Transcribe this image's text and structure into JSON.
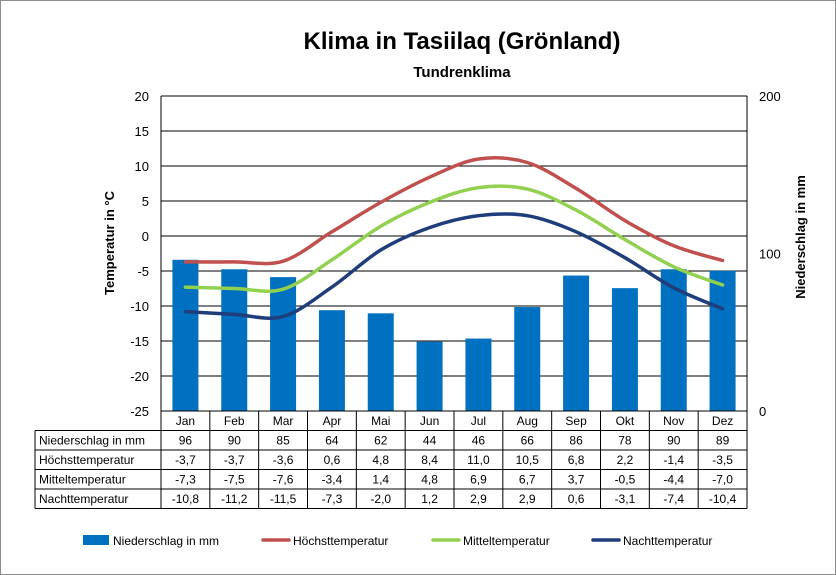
{
  "chart_data": {
    "type": "bar",
    "title": "Klima in Tasiilaq (Grönland)",
    "subtitle": "Tundrenklima",
    "categories": [
      "Jan",
      "Feb",
      "Mar",
      "Apr",
      "Mai",
      "Jun",
      "Jul",
      "Aug",
      "Sep",
      "Okt",
      "Nov",
      "Dez"
    ],
    "y_left": {
      "label": "Temperatur in °C",
      "min": -25,
      "max": 20,
      "ticks": [
        -25,
        -20,
        -15,
        -10,
        -5,
        0,
        5,
        10,
        15,
        20
      ]
    },
    "y_right": {
      "label": "Niederschlag in mm",
      "min": 0,
      "max": 200,
      "ticks": [
        0,
        100,
        200
      ]
    },
    "series": [
      {
        "name": "Niederschlag in mm",
        "kind": "bar",
        "axis": "right",
        "color": "#0070c0",
        "values": [
          96,
          90,
          85,
          64,
          62,
          44,
          46,
          66,
          86,
          78,
          90,
          89
        ],
        "labels": [
          "96",
          "90",
          "85",
          "64",
          "62",
          "44",
          "46",
          "66",
          "86",
          "78",
          "90",
          "89"
        ]
      },
      {
        "name": "Höchsttemperatur",
        "kind": "line",
        "axis": "left",
        "color": "#c0504d",
        "values": [
          -3.7,
          -3.7,
          -3.6,
          0.6,
          4.8,
          8.4,
          11.0,
          10.5,
          6.8,
          2.2,
          -1.4,
          -3.5
        ],
        "labels": [
          "-3,7",
          "-3,7",
          "-3,6",
          "0,6",
          "4,8",
          "8,4",
          "11,0",
          "10,5",
          "6,8",
          "2,2",
          "-1,4",
          "-3,5"
        ]
      },
      {
        "name": "Mitteltemperatur",
        "kind": "line",
        "axis": "left",
        "color": "#92d050",
        "values": [
          -7.3,
          -7.5,
          -7.6,
          -3.4,
          1.4,
          4.8,
          6.9,
          6.7,
          3.7,
          -0.5,
          -4.4,
          -7.0
        ],
        "labels": [
          "-7,3",
          "-7,5",
          "-7,6",
          "-3,4",
          "1,4",
          "4,8",
          "6,9",
          "6,7",
          "3,7",
          "-0,5",
          "-4,4",
          "-7,0"
        ]
      },
      {
        "name": "Nachttemperatur",
        "kind": "line",
        "axis": "left",
        "color": "#1f3d7a",
        "values": [
          -10.8,
          -11.2,
          -11.5,
          -7.3,
          -2.0,
          1.2,
          2.9,
          2.9,
          0.6,
          -3.1,
          -7.4,
          -10.4
        ],
        "labels": [
          "-10,8",
          "-11,2",
          "-11,5",
          "-7,3",
          "-2,0",
          "1,2",
          "2,9",
          "2,9",
          "0,6",
          "-3,1",
          "-7,4",
          "-10,4"
        ]
      }
    ],
    "grid": "horizontal",
    "legend": "bottom",
    "data_table": true
  }
}
